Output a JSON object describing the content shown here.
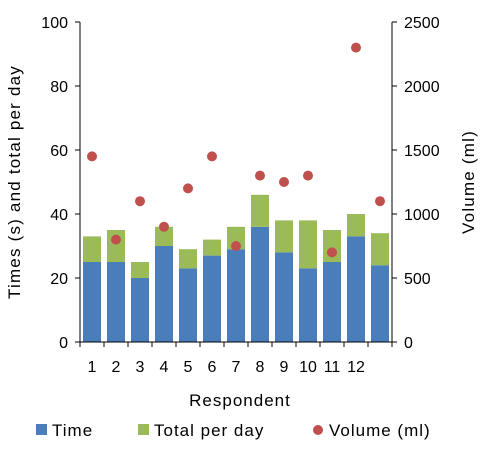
{
  "chart_data": {
    "type": "bar",
    "stacked": true,
    "categories": [
      "1",
      "2",
      "3",
      "4",
      "5",
      "6",
      "7",
      "8",
      "9",
      "10",
      "11",
      "12",
      ""
    ],
    "series": [
      {
        "name": "Time",
        "kind": "bar",
        "axis": "left",
        "color": "#4a7ebb",
        "values": [
          25,
          25,
          20,
          30,
          23,
          27,
          29,
          36,
          28,
          23,
          25,
          33,
          24
        ]
      },
      {
        "name": "Total per day",
        "kind": "bar",
        "axis": "left",
        "color": "#9bbb59",
        "values": [
          8,
          10,
          5,
          6,
          6,
          5,
          7,
          10,
          10,
          15,
          10,
          7,
          10
        ]
      },
      {
        "name": "Volume (ml)",
        "kind": "scatter",
        "axis": "right",
        "color": "#c0504d",
        "values": [
          1450,
          800,
          1100,
          900,
          1200,
          1450,
          750,
          1300,
          1250,
          1300,
          700,
          2300,
          1100
        ]
      }
    ],
    "xlabel": "Respondent",
    "ylabel": "Times (s) and total per day",
    "y2label": "Volume (ml)",
    "ylim": [
      0,
      100
    ],
    "y2lim": [
      0,
      2500
    ],
    "yticks": [
      0,
      20,
      40,
      60,
      80,
      100
    ],
    "y2ticks": [
      0,
      500,
      1000,
      1500,
      2000,
      2500
    ],
    "legend_position": "bottom",
    "grid": false
  }
}
